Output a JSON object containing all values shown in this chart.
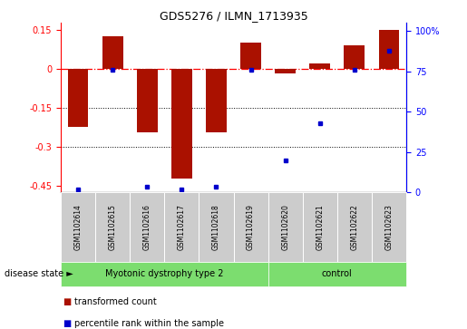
{
  "title": "GDS5276 / ILMN_1713935",
  "samples": [
    "GSM1102614",
    "GSM1102615",
    "GSM1102616",
    "GSM1102617",
    "GSM1102618",
    "GSM1102619",
    "GSM1102620",
    "GSM1102621",
    "GSM1102622",
    "GSM1102623"
  ],
  "red_values": [
    -0.225,
    0.125,
    -0.245,
    -0.42,
    -0.245,
    0.1,
    -0.018,
    0.02,
    0.09,
    0.148
  ],
  "blue_values": [
    2.0,
    76.0,
    3.5,
    2.0,
    3.5,
    76.0,
    20.0,
    43.0,
    76.0,
    88.0
  ],
  "ylim_left": [
    -0.475,
    0.175
  ],
  "ylim_right": [
    0,
    105
  ],
  "yticks_left": [
    -0.45,
    -0.3,
    -0.15,
    0.0,
    0.15
  ],
  "ytick_labels_left": [
    "-0.45",
    "-0.3",
    "-0.15",
    "0",
    "0.15"
  ],
  "yticks_right": [
    0,
    25,
    50,
    75,
    100
  ],
  "ytick_labels_right": [
    "0",
    "25",
    "50",
    "75",
    "100%"
  ],
  "dotted_lines": [
    -0.15,
    -0.3
  ],
  "disease_groups": [
    {
      "label": "Myotonic dystrophy type 2",
      "start": 0,
      "end": 6,
      "color": "#7CDD6F"
    },
    {
      "label": "control",
      "start": 6,
      "end": 10,
      "color": "#7CDD6F"
    }
  ],
  "bar_color": "#AA1100",
  "point_color": "#0000CC",
  "bar_width": 0.6,
  "box_color": "#CCCCCC",
  "disease_state_label": "disease state ►",
  "legend_items": [
    {
      "color": "#AA1100",
      "label": "transformed count"
    },
    {
      "color": "#0000CC",
      "label": "percentile rank within the sample"
    }
  ]
}
